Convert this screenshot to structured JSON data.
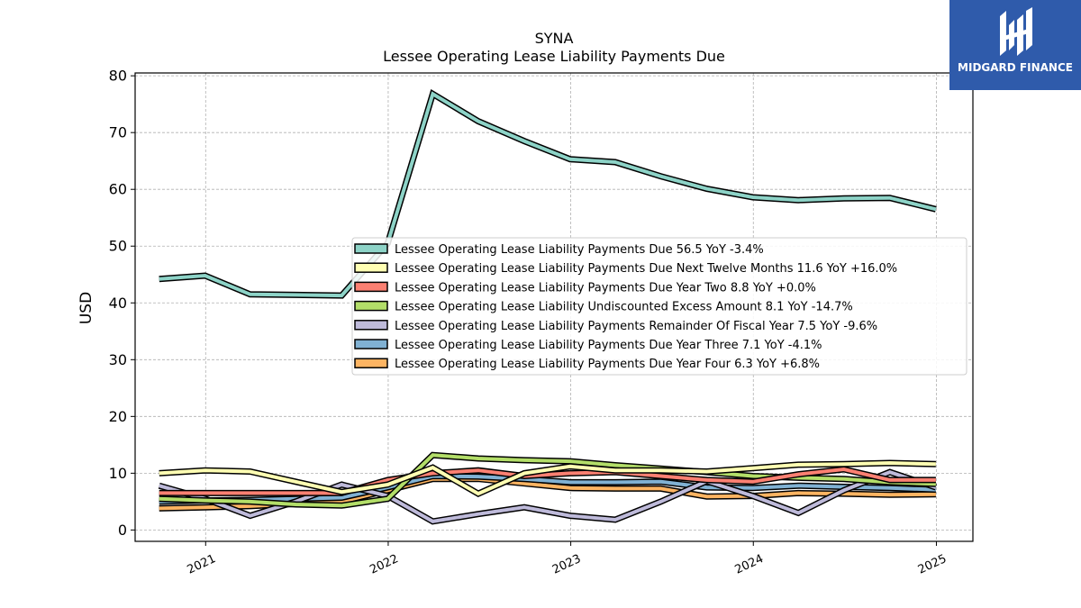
{
  "brand": {
    "name": "MIDGARD FINANCE",
    "bg_color": "#2f5bab"
  },
  "chart_data": {
    "type": "line",
    "title": "SYNA",
    "subtitle": "Lessee Operating Lease Liability Payments Due",
    "xlabel": "",
    "ylabel": "USD",
    "ylim": [
      -2,
      80.5
    ],
    "xlim": [
      "2020-08-13",
      "2025-03-15"
    ],
    "yticks": [
      0,
      10,
      20,
      30,
      40,
      50,
      60,
      70,
      80
    ],
    "xticks": [
      "2021",
      "2022",
      "2023",
      "2024",
      "2025"
    ],
    "grid": true,
    "legend_position": "center-right",
    "x": [
      "2020-09-30",
      "2020-12-31",
      "2021-03-31",
      "2021-06-30",
      "2021-09-30",
      "2021-12-31",
      "2022-03-31",
      "2022-06-30",
      "2022-09-30",
      "2022-12-31",
      "2023-03-31",
      "2023-06-30",
      "2023-09-30",
      "2023-12-31",
      "2024-03-31",
      "2024-06-30",
      "2024-09-30",
      "2024-12-31"
    ],
    "series": [
      {
        "name": "Lessee Operating Lease Liability Payments Due",
        "legend": "Lessee Operating Lease Liability Payments Due  56.5 YoY -3.4%",
        "color": "#8dd3c7",
        "values": [
          44.2,
          44.8,
          41.5,
          41.4,
          41.3,
          50.5,
          76.8,
          72.0,
          68.5,
          65.3,
          64.8,
          62.3,
          60.1,
          58.6,
          58.1,
          58.4,
          58.5,
          56.5
        ]
      },
      {
        "name": "Lessee Operating Lease Liability Payments Due Next Twelve Months",
        "legend": "Lessee Operating Lease Liability Payments Due Next Twelve Months  11.6 YoY +16.0%",
        "color": "#ffffb3",
        "values": [
          10.0,
          10.5,
          10.3,
          8.5,
          6.7,
          8.0,
          11.0,
          6.4,
          10.0,
          11.2,
          10.5,
          10.5,
          10.3,
          10.9,
          11.5,
          11.6,
          11.8,
          11.6
        ]
      },
      {
        "name": "Lessee Operating Lease Liability Payments Due Year Two",
        "legend": "Lessee Operating Lease Liability Payments Due Year Two  8.8 YoY +0.0%",
        "color": "#fb8072",
        "values": [
          6.5,
          6.5,
          6.5,
          6.5,
          6.5,
          8.8,
          10.0,
          10.5,
          9.5,
          10.0,
          10.2,
          9.5,
          8.8,
          8.5,
          9.8,
          10.7,
          8.8,
          8.8
        ]
      },
      {
        "name": "Lessee Operating Lease Liability Undiscounted Excess Amount",
        "legend": "Lessee Operating Lease Liability Undiscounted Excess Amount  8.1 YoY -14.7%",
        "color": "#b3de69",
        "values": [
          5.5,
          5.2,
          5.0,
          4.5,
          4.3,
          5.5,
          13.2,
          12.6,
          12.3,
          12.1,
          11.4,
          10.8,
          10.2,
          9.5,
          9.2,
          9.0,
          8.4,
          8.1
        ]
      },
      {
        "name": "Lessee Operating Lease Liability Payments Remainder Of Fiscal Year",
        "legend": "Lessee Operating Lease Liability Payments Remainder Of Fiscal Year  7.5 YoY -9.6%",
        "color": "#bebada",
        "values": [
          7.8,
          5.5,
          2.5,
          5.0,
          8.0,
          6.0,
          1.5,
          2.8,
          4.0,
          2.5,
          1.8,
          5.0,
          8.6,
          6.0,
          3.0,
          7.0,
          10.2,
          7.5
        ]
      },
      {
        "name": "Lessee Operating Lease Liability Payments Due Year Three",
        "legend": "Lessee Operating Lease Liability Payments Due Year Three  7.1 YoY -4.1%",
        "color": "#80b1d3",
        "values": [
          5.0,
          5.2,
          5.3,
          5.5,
          5.7,
          7.5,
          9.5,
          9.4,
          9.0,
          8.4,
          8.4,
          8.5,
          7.5,
          7.4,
          7.8,
          7.6,
          7.4,
          7.1
        ]
      },
      {
        "name": "Lessee Operating Lease Liability Payments Due Year Four",
        "legend": "Lessee Operating Lease Liability Payments Due Year Four  6.3 YoY +6.8%",
        "color": "#fdb462",
        "values": [
          3.8,
          4.0,
          4.2,
          4.6,
          5.0,
          7.0,
          9.0,
          9.0,
          8.2,
          7.4,
          7.3,
          7.3,
          5.9,
          6.0,
          6.5,
          6.4,
          6.2,
          6.3
        ]
      }
    ]
  }
}
